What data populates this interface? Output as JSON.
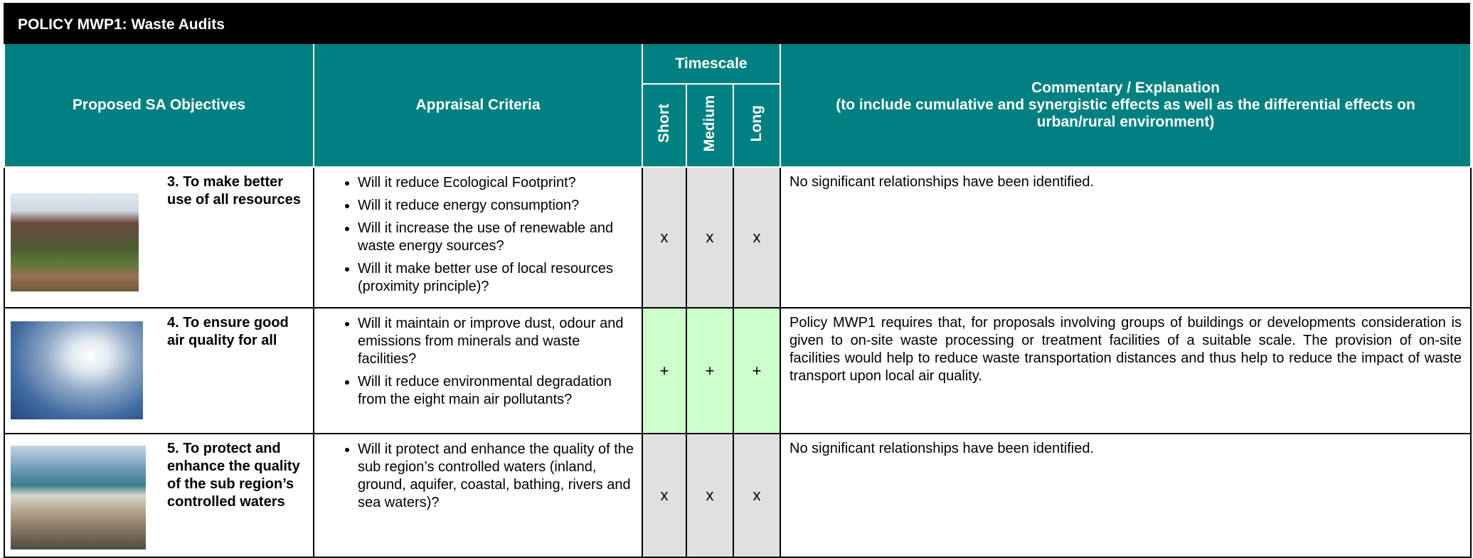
{
  "header": {
    "title": "POLICY MWP1: Waste Audits",
    "objectives": "Proposed SA Objectives",
    "criteria": "Appraisal Criteria",
    "timescale": "Timescale",
    "short": "Short",
    "medium": "Medium",
    "long": "Long",
    "commentary": "Commentary / Explanation",
    "commentary_note": "(to include cumulative and synergistic effects as well as the differential effects on urban/rural environment)"
  },
  "table": {
    "rows": [
      {
        "objective": "3. To make better use of all resources",
        "criteria": [
          "Will it reduce Ecological Footprint?",
          "Will it reduce energy consumption?",
          "Will it increase the use of renewable and waste energy sources?",
          "Will it make better use of local resources (proximity principle)?"
        ],
        "short": "x",
        "medium": "x",
        "long": "x",
        "commentary": "No significant relationships have been identified."
      },
      {
        "objective": "4. To ensure good air quality for all",
        "criteria": [
          "Will it maintain or improve dust, odour and emissions from minerals and waste facilities?",
          "Will it reduce environmental degradation from the eight main air pollutants?"
        ],
        "short": "+",
        "medium": "+",
        "long": "+",
        "commentary": "Policy MWP1 requires that, for proposals involving groups of buildings or developments consideration is given to on-site waste processing or treatment facilities of a suitable scale. The provision of on-site facilities would help to reduce waste transportation distances and thus help to reduce the impact of waste transport upon local air quality."
      },
      {
        "objective": "5. To protect and enhance the quality of the sub region’s controlled waters",
        "criteria": [
          "Will it protect and enhance the quality of the sub region’s controlled waters (inland, ground, aquifer, coastal, bathing, rivers and sea waters)?"
        ],
        "short": "x",
        "medium": "x",
        "long": "x",
        "commentary": "No significant relationships have been identified."
      }
    ]
  }
}
